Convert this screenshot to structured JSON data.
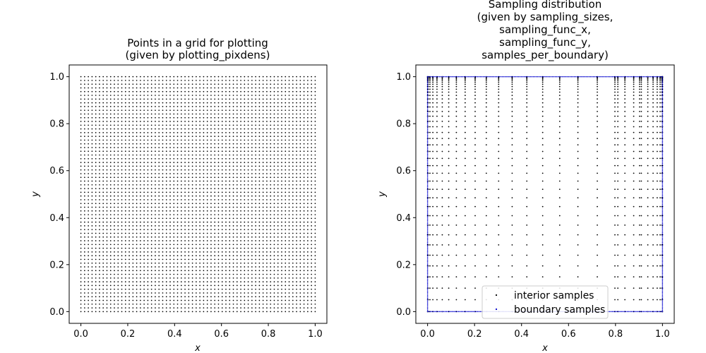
{
  "chart_data": [
    {
      "type": "scatter",
      "title_lines": [
        "Points in a grid for plotting",
        "(given by plotting_pixdens)"
      ],
      "xlabel": "x",
      "ylabel": "y",
      "xlim": [
        -0.05,
        1.05
      ],
      "ylim": [
        -0.05,
        1.05
      ],
      "xticks": [
        0.0,
        0.2,
        0.4,
        0.6,
        0.8,
        1.0
      ],
      "yticks": [
        0.0,
        0.2,
        0.4,
        0.6,
        0.8,
        1.0
      ],
      "xtick_labels": [
        "0.0",
        "0.2",
        "0.4",
        "0.6",
        "0.8",
        "1.0"
      ],
      "ytick_labels": [
        "0.0",
        "0.2",
        "0.4",
        "0.6",
        "0.8",
        "1.0"
      ],
      "series": [
        {
          "color": "#000000",
          "grid": {
            "x_range": [
              0,
              1
            ],
            "y_range": [
              0,
              1
            ],
            "nx": 64,
            "ny": 64
          }
        }
      ]
    },
    {
      "type": "scatter",
      "title_lines": [
        "Sampling distribution",
        "(given by sampling_sizes,",
        "sampling_func_x,",
        "sampling_func_y,",
        "samples_per_boundary)"
      ],
      "xlabel": "x",
      "ylabel": "y",
      "xlim": [
        -0.05,
        1.05
      ],
      "ylim": [
        -0.05,
        1.05
      ],
      "xticks": [
        0.0,
        0.2,
        0.4,
        0.6,
        0.8,
        1.0
      ],
      "yticks": [
        0.0,
        0.2,
        0.4,
        0.6,
        0.8,
        1.0
      ],
      "xtick_labels": [
        "0.0",
        "0.2",
        "0.4",
        "0.6",
        "0.8",
        "1.0"
      ],
      "ytick_labels": [
        "0.0",
        "0.2",
        "0.4",
        "0.6",
        "0.8",
        "1.0"
      ],
      "legend": {
        "placement": "lower-center",
        "entries": [
          "interior samples",
          "boundary samples"
        ]
      },
      "series": [
        {
          "name": "interior samples",
          "color": "#000000",
          "x_values": [
            0.0,
            0.0025,
            0.01,
            0.0225,
            0.04,
            0.0625,
            0.09,
            0.1225,
            0.16,
            0.2025,
            0.25,
            0.3025,
            0.36,
            0.4225,
            0.49,
            0.5625,
            0.64,
            0.7225,
            0.81,
            0.9025,
            1.0,
            1.0,
            0.9975,
            0.99,
            0.9775,
            0.96,
            0.9375,
            0.91,
            0.8775,
            0.84,
            0.7975
          ],
          "y_count": 40
        },
        {
          "name": "boundary samples",
          "color": "#0000cc",
          "per_side": 160
        }
      ]
    }
  ]
}
